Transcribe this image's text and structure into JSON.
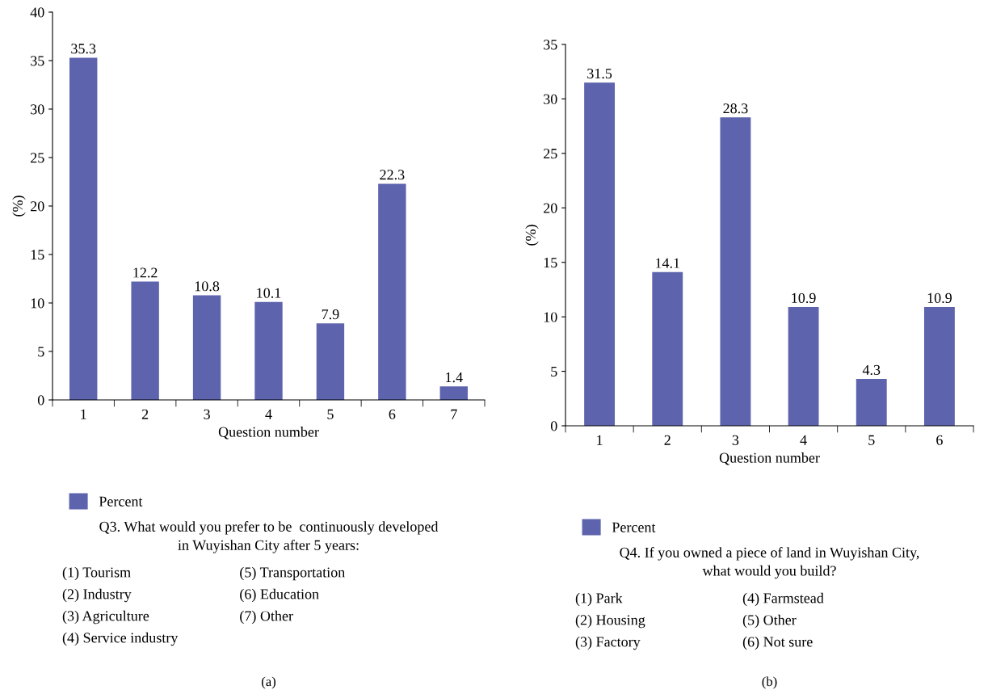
{
  "chart_data": [
    {
      "type": "bar",
      "categories": [
        "1",
        "2",
        "3",
        "4",
        "5",
        "6",
        "7"
      ],
      "series": [
        {
          "name": "Percent",
          "color": "#5d63ad",
          "values": [
            35.3,
            12.2,
            10.8,
            10.1,
            7.9,
            22.3,
            1.4
          ]
        }
      ],
      "xlabel": "Question number",
      "ylabel": "(%)",
      "ylim": [
        0,
        40
      ],
      "yticks": [
        0,
        5,
        10,
        15,
        20,
        25,
        30,
        35,
        40
      ],
      "data_labels": true,
      "legend": "bottom",
      "grid": false,
      "annotations": [
        "Q3. What would you prefer to be  continuously developed\nin Wuyishan City after 5 years:",
        "(1) Tourism",
        "(2) Industry",
        "(3) Agriculture",
        "(4) Service industry",
        "(5) Transportation",
        "(6) Education",
        "(7) Other",
        "(a)"
      ]
    },
    {
      "type": "bar",
      "categories": [
        "1",
        "2",
        "3",
        "4",
        "5",
        "6"
      ],
      "series": [
        {
          "name": "Percent",
          "color": "#5d63ad",
          "values": [
            31.5,
            14.1,
            28.3,
            10.9,
            4.3,
            10.9
          ]
        }
      ],
      "xlabel": "Question number",
      "ylabel": "(%)",
      "ylim": [
        0,
        35
      ],
      "yticks": [
        0,
        5,
        10,
        15,
        20,
        25,
        30,
        35
      ],
      "data_labels": true,
      "legend": "bottom",
      "grid": false,
      "annotations": [
        "Q4. If you owned a piece of land in Wuyishan City,\nwhat would you build?",
        "(1) Park",
        "(2) Housing",
        "(3) Factory",
        "(4) Farmstead",
        "(5) Other",
        "(6) Not sure",
        "(b)"
      ]
    }
  ]
}
